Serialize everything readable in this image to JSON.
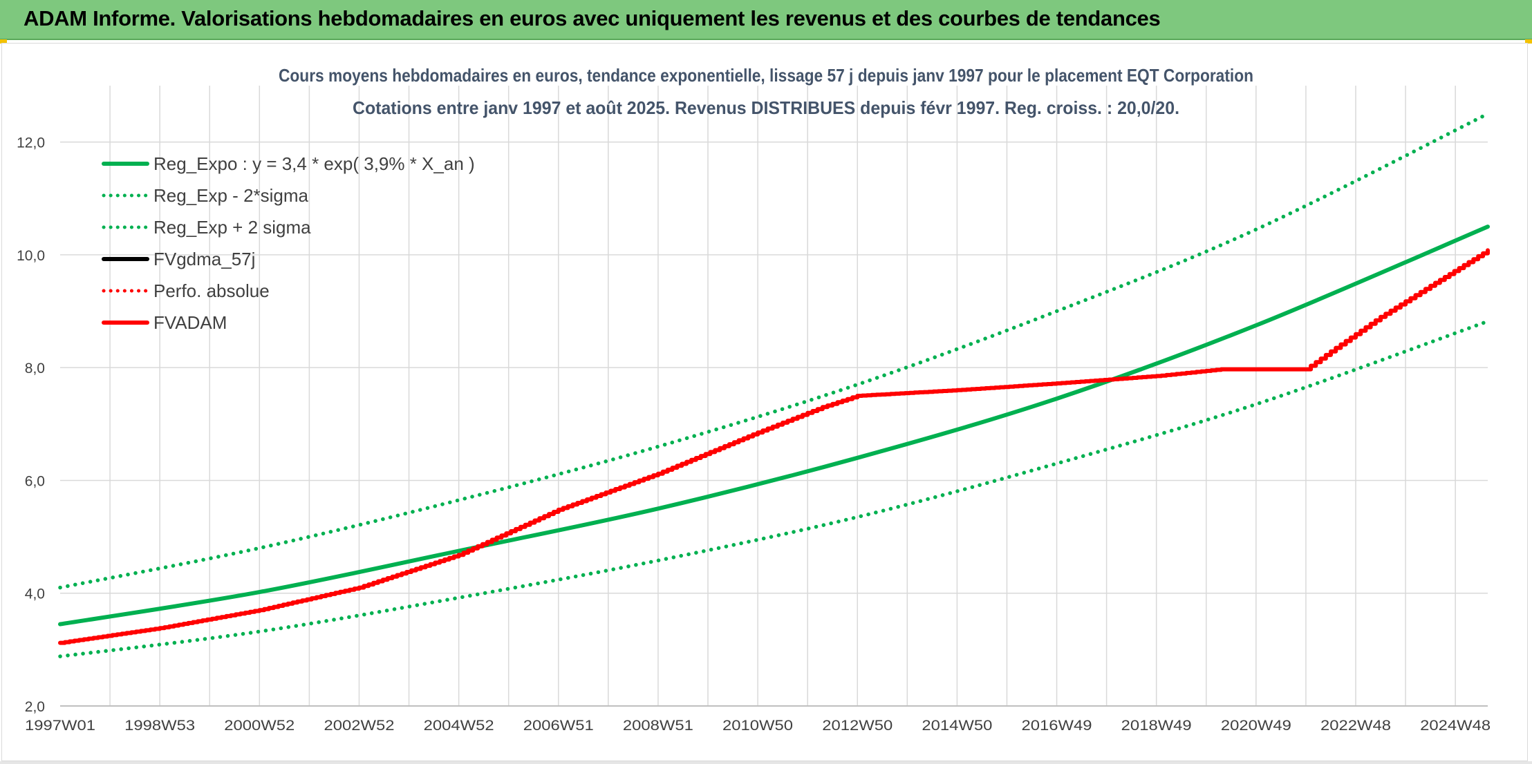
{
  "header": {
    "title": "ADAM Informe. Valorisations hebdomadaires en euros avec uniquement les revenus et des courbes de tendances"
  },
  "colors": {
    "header_bg": "#7ec87e",
    "trend": "#00b050",
    "fvadam": "#ff0000",
    "fvgdma": "#000000",
    "grid": "#d9d9d9"
  },
  "chart_data": {
    "type": "line",
    "title": "Cours moyens hebdomadaires en euros, tendance exponentielle, lissage 57 j depuis janv 1997 pour le placement EQT Corporation",
    "subtitle": "Cotations entre janv 1997 et août 2025. Revenus DISTRIBUES depuis févr 1997. Reg. croiss. : 20,0/20.",
    "xlabel": "",
    "ylabel": "",
    "ylim": [
      2.0,
      13.0
    ],
    "yticks": [
      "2,0",
      "4,0",
      "6,0",
      "8,0",
      "10,0",
      "12,0"
    ],
    "ytick_values": [
      2,
      4,
      6,
      8,
      10,
      12
    ],
    "xlim": [
      1997.0,
      2025.65
    ],
    "xticks": [
      "1997W01",
      "1998W53",
      "2000W52",
      "2002W52",
      "2004W52",
      "2006W51",
      "2008W51",
      "2010W50",
      "2012W50",
      "2014W50",
      "2016W49",
      "2018W49",
      "2020W49",
      "2022W48",
      "2024W48"
    ],
    "xtick_values": [
      1997.0,
      1999.0,
      2001.0,
      2003.0,
      2005.0,
      2007.0,
      2009.0,
      2011.0,
      2013.0,
      2015.0,
      2017.0,
      2019.0,
      2021.0,
      2023.0,
      2025.0
    ],
    "grid": true,
    "legend_position": "top-left",
    "series": [
      {
        "name": "Reg_Expo : y = 3,4 * exp( 3,9% *  X_an )",
        "style": "solid",
        "color": "#00b050",
        "x": [
          1997.0,
          2001.0,
          2005.0,
          2009.0,
          2013.0,
          2017.0,
          2021.0,
          2025.65
        ],
        "y": [
          3.45,
          4.02,
          4.75,
          5.5,
          6.4,
          7.45,
          8.75,
          10.5
        ]
      },
      {
        "name": "Reg_Exp - 2*sigma",
        "style": "dotted",
        "color": "#00b050",
        "x": [
          1997.0,
          2001.0,
          2005.0,
          2009.0,
          2013.0,
          2017.0,
          2021.0,
          2025.65
        ],
        "y": [
          2.88,
          3.32,
          3.92,
          4.58,
          5.35,
          6.3,
          7.35,
          8.82
        ]
      },
      {
        "name": "Reg_Exp + 2 sigma",
        "style": "dotted",
        "color": "#00b050",
        "x": [
          1997.0,
          2001.0,
          2005.0,
          2009.0,
          2013.0,
          2017.0,
          2021.0,
          2025.65
        ],
        "y": [
          4.1,
          4.8,
          5.65,
          6.6,
          7.7,
          9.0,
          10.45,
          12.5
        ]
      },
      {
        "name": "FVgdma_57j",
        "style": "solid",
        "color": "#000000",
        "x": [],
        "y": []
      },
      {
        "name": "Perfo. absolue",
        "style": "dotted",
        "color": "#ff0000",
        "x": [],
        "y": []
      },
      {
        "name": "FVADAM",
        "style": "solid",
        "color": "#ff0000",
        "x": [
          1997.0,
          1999.0,
          2001.0,
          2003.0,
          2005.0,
          2007.0,
          2009.0,
          2011.0,
          2012.3,
          2013.0,
          2015.0,
          2017.0,
          2019.0,
          2020.3,
          2022.0,
          2022.6,
          2023.5,
          2024.5,
          2025.65
        ],
        "y": [
          3.12,
          3.38,
          3.7,
          4.1,
          4.68,
          5.48,
          6.12,
          6.85,
          7.3,
          7.5,
          7.6,
          7.72,
          7.85,
          7.97,
          7.97,
          8.35,
          8.9,
          9.45,
          10.08
        ]
      }
    ]
  }
}
